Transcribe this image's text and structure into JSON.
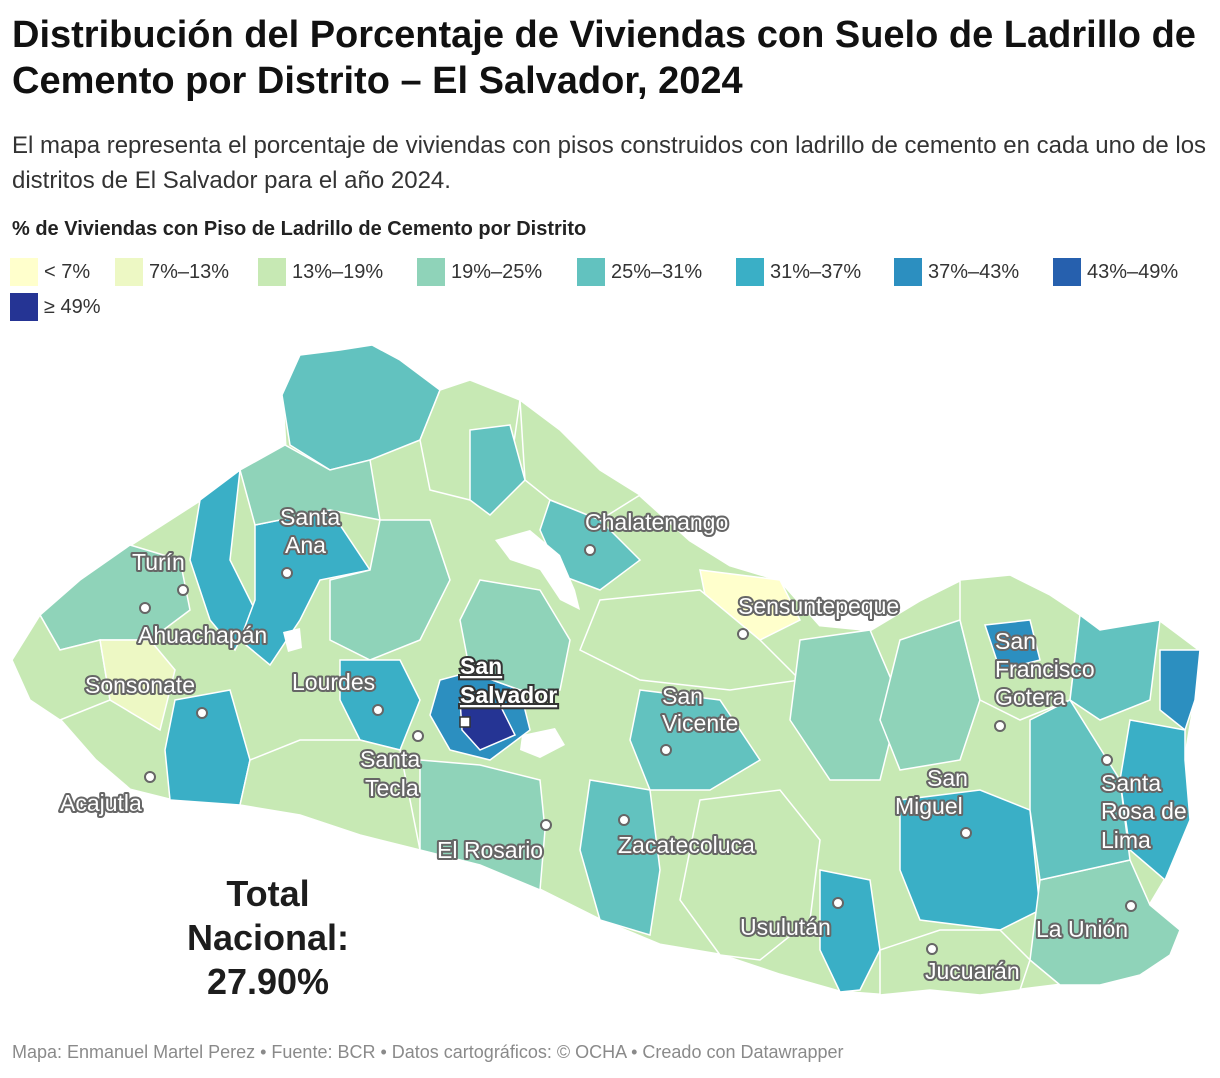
{
  "title": "Distribución del Porcentaje de Viviendas con Suelo de Ladrillo de Cemento por Distrito – El Salvador, 2024",
  "subtitle": "El mapa representa el porcentaje de viviendas con pisos construidos con ladrillo de cemento en cada uno de los distritos de El Salvador para el año 2024.",
  "legend": {
    "title": "% de Viviendas con Piso de Ladrillo de Cemento por Distrito",
    "items": [
      {
        "label": "< 7%",
        "color": "#ffffcc"
      },
      {
        "label": "7%–13%",
        "color": "#edf8c4"
      },
      {
        "label": "13%–19%",
        "color": "#c7e9b4"
      },
      {
        "label": "19%–25%",
        "color": "#8fd3b9"
      },
      {
        "label": "25%–31%",
        "color": "#62c2bf"
      },
      {
        "label": "31%–37%",
        "color": "#3aafc6"
      },
      {
        "label": "37%–43%",
        "color": "#2c8fc0"
      },
      {
        "label": "43%–49%",
        "color": "#2660ae"
      },
      {
        "label": "≥ 49%",
        "color": "#253494"
      }
    ]
  },
  "map": {
    "capital": {
      "name_line1": "San",
      "name_line2": "Salvador"
    },
    "cities": [
      {
        "name": "Turín"
      },
      {
        "name": "Ahuachapán"
      },
      {
        "name": "Sonsonate"
      },
      {
        "name": "Acajutla"
      },
      {
        "name_line1": "Santa",
        "name_line2": "Ana"
      },
      {
        "name": "Lourdes"
      },
      {
        "name_line1": "Santa",
        "name_line2": "Tecla"
      },
      {
        "name": "El Rosario"
      },
      {
        "name": "Chalatenango"
      },
      {
        "name_line1": "San",
        "name_line2": "Vicente"
      },
      {
        "name": "Zacatecoluca"
      },
      {
        "name": "Sensuntepeque"
      },
      {
        "name": "Usulután"
      },
      {
        "name": "Jucuarán"
      },
      {
        "name_line1": "San",
        "name_line2": "Miguel"
      },
      {
        "name_line1": "San",
        "name_line2": "Francisco",
        "name_line3": "Gotera"
      },
      {
        "name_line1": "Santa",
        "name_line2": "Rosa de",
        "name_line3": "Lima"
      },
      {
        "name": "La Unión"
      }
    ]
  },
  "total": {
    "line1": "Total",
    "line2": "Nacional:",
    "value": "27.90%"
  },
  "footer": "Mapa: Enmanuel Martel Perez • Fuente: BCR • Datos cartográficos: © OCHA  • Creado con Datawrapper"
}
